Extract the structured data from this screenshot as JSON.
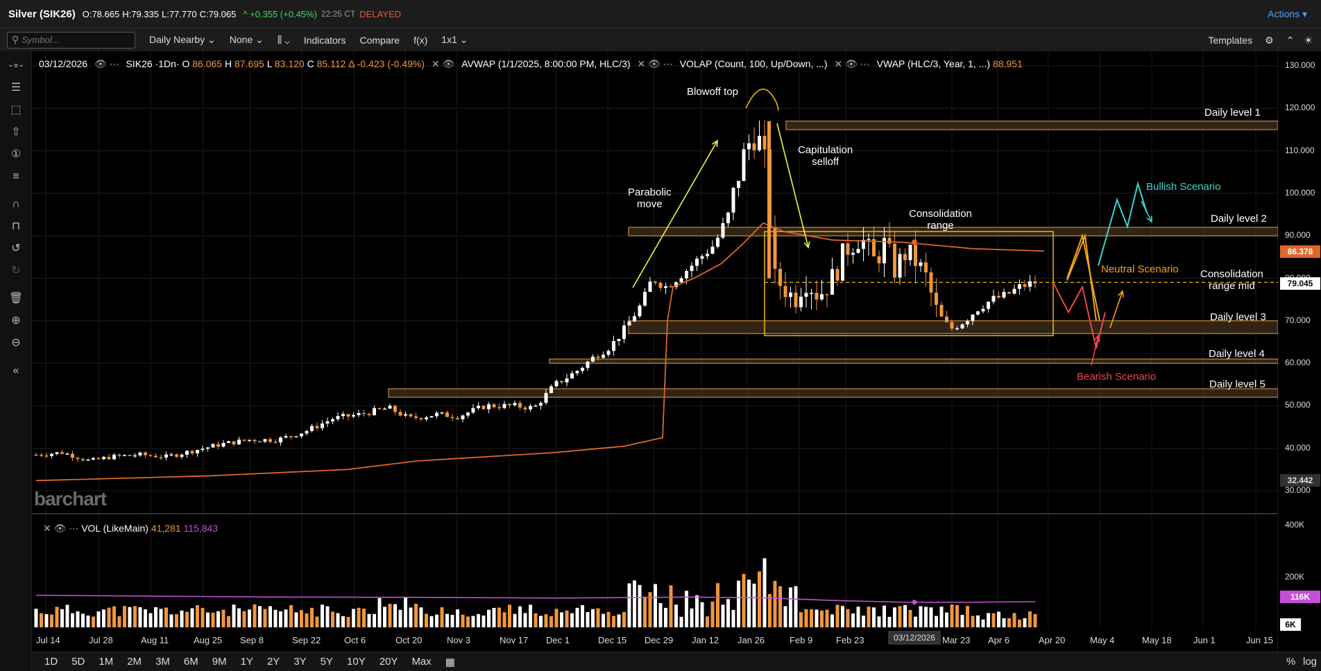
{
  "header": {
    "title": "Silver (SIK26)",
    "open": "O:78.665",
    "high": "H:79.335",
    "low": "L:77.770",
    "close": "C:79.065",
    "change": "^ +0.355 (+0.45%)",
    "time": "22:25 CT",
    "delayed": "DELAYED",
    "actions": "Actions"
  },
  "toolbar": {
    "search_placeholder": "Symbol...",
    "period": "Daily Nearby",
    "none": "None",
    "indicators": "Indicators",
    "compare": "Compare",
    "fx": "f(x)",
    "layout": "1x1",
    "templates": "Templates"
  },
  "legend": {
    "date": "03/12/2026",
    "symbol": "SIK26 ·1Dn·",
    "o_label": "O",
    "o_val": "86.065",
    "h_label": "H",
    "h_val": "87.695",
    "l_label": "L",
    "l_val": "83.120",
    "c_label": "C",
    "c_val": "85.112",
    "delta_val": "Δ -0.423 (-0.49%)",
    "avwap": "AVWAP (1/1/2025, 8:00:00 PM, HLC/3)",
    "volap": "VOLAP (Count, 100, Up/Down, ...)",
    "vwap": "VWAP (HLC/3, Year, 1, ...)",
    "vwap_val": "88.951"
  },
  "volume_legend": {
    "name": "VOL (LikeMain)",
    "value": "41,281",
    "avg": "115,843"
  },
  "watermark": "barchart",
  "annotations": {
    "blowoff": "Blowoff top",
    "parabolic": "Parabolic\nmove",
    "capitulation": "Capitulation\nselloff",
    "consolidation": "Consolidation\nrange",
    "consolidation_mid": "Consolidation\nrange mid",
    "bullish": "Bullish Scenario",
    "neutral": "Neutral Scenario",
    "bearish": "Bearish Scenario",
    "level1": "Daily level 1",
    "level2": "Daily level 2",
    "level3": "Daily level 3",
    "level4": "Daily level 4",
    "level5": "Daily level 5"
  },
  "price_axis": {
    "labels": [
      "130.000",
      "120.000",
      "110.000",
      "100.000",
      "90.000",
      "80.000",
      "70.000",
      "60.000",
      "50.000",
      "40.000",
      "30.000"
    ],
    "box_orange": "86.378",
    "box_white": "79.045",
    "box_grey": "32.442"
  },
  "volume_axis": {
    "labels": [
      "400K",
      "200K"
    ],
    "box_purple": "116K",
    "box_white": "6K"
  },
  "time_axis": {
    "labels": [
      "Jul 14",
      "Jul 28",
      "Aug 11",
      "Aug 25",
      "Sep 8",
      "Sep 22",
      "Oct 6",
      "Oct 20",
      "Nov 3",
      "Nov 17",
      "Dec 1",
      "Dec 15",
      "Dec 29",
      "Jan 12",
      "Jan 26",
      "Feb 9",
      "Feb 23",
      "Mar 23",
      "Apr 6",
      "Apr 20",
      "May 4",
      "May 18",
      "Jun 1",
      "Jun 15"
    ],
    "current_flag": "03/12/2026"
  },
  "bottom_bar": {
    "ranges": [
      "1D",
      "5D",
      "1M",
      "2M",
      "3M",
      "6M",
      "9M",
      "1Y",
      "2Y",
      "3Y",
      "5Y",
      "10Y",
      "20Y",
      "Max"
    ],
    "percent": "%",
    "log": "log"
  },
  "colors": {
    "up": "#ffffff",
    "down": "#f0963c",
    "vwap": "#e0662a",
    "level_fill": "#3a2a18",
    "level_stroke": "#c88a3e",
    "consolidation": "#f2b705",
    "bull": "#39d6d0",
    "neutral": "#f2a51e",
    "bear": "#f0444c",
    "arrow": "#f5f53c",
    "volma": "#c24fd6"
  },
  "chart_data": {
    "type": "candlestick",
    "x": [
      "Jul 14",
      "Jul 28",
      "Aug 11",
      "Aug 25",
      "Sep 8",
      "Sep 22",
      "Oct 6",
      "Oct 20",
      "Nov 3",
      "Nov 17",
      "Dec 1",
      "Dec 15",
      "Dec 29",
      "Jan 12",
      "Jan 26",
      "Feb 9",
      "Feb 23",
      "Mar 9",
      "Mar 23",
      "Apr 6"
    ],
    "close": [
      38.5,
      37.5,
      38.5,
      38.5,
      41.5,
      43.5,
      47.0,
      49.5,
      48.0,
      48.5,
      56.0,
      63.0,
      76.0,
      83.0,
      115.0,
      78.0,
      90.0,
      83.0,
      70.0,
      78.0
    ],
    "ylim": [
      30,
      130
    ],
    "levels": [
      {
        "name": "Daily level 1",
        "low": 115,
        "high": 117
      },
      {
        "name": "Daily level 2",
        "low": 90,
        "high": 92
      },
      {
        "name": "Daily level 3",
        "low": 67,
        "high": 70
      },
      {
        "name": "Daily level 4",
        "low": 60,
        "high": 61
      },
      {
        "name": "Daily level 5",
        "low": 52,
        "high": 54
      }
    ],
    "consolidation": {
      "low": 66.5,
      "high": 91,
      "mid": 79.045
    }
  }
}
